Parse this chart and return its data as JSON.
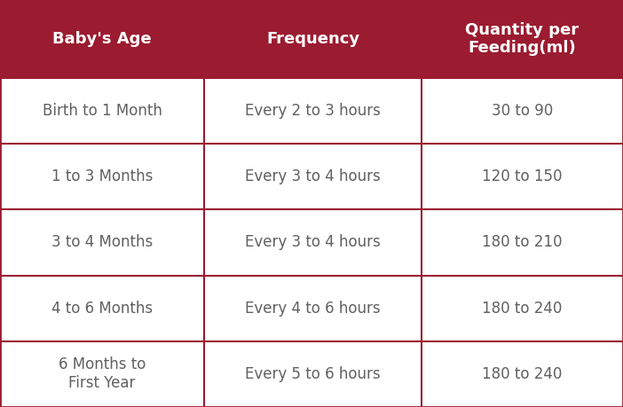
{
  "header": [
    "Baby's Age",
    "Frequency",
    "Quantity per\nFeeding(ml)"
  ],
  "rows": [
    [
      "Birth to 1 Month",
      "Every 2 to 3 hours",
      "30 to 90"
    ],
    [
      "1 to 3 Months",
      "Every 3 to 4 hours",
      "120 to 150"
    ],
    [
      "3 to 4 Months",
      "Every 3 to 4 hours",
      "180 to 210"
    ],
    [
      "4 to 6 Months",
      "Every 4 to 6 hours",
      "180 to 240"
    ],
    [
      "6 Months to\nFirst Year",
      "Every 5 to 6 hours",
      "180 to 240"
    ]
  ],
  "header_bg": "#9B1B30",
  "header_text_color": "#FFFFFF",
  "row_bg": "#FFFFFF",
  "row_text_color": "#606060",
  "line_color": "#9B1B30",
  "figsize": [
    7.02,
    4.59
  ],
  "dpi": 100,
  "header_fontsize": 13,
  "row_fontsize": 12
}
